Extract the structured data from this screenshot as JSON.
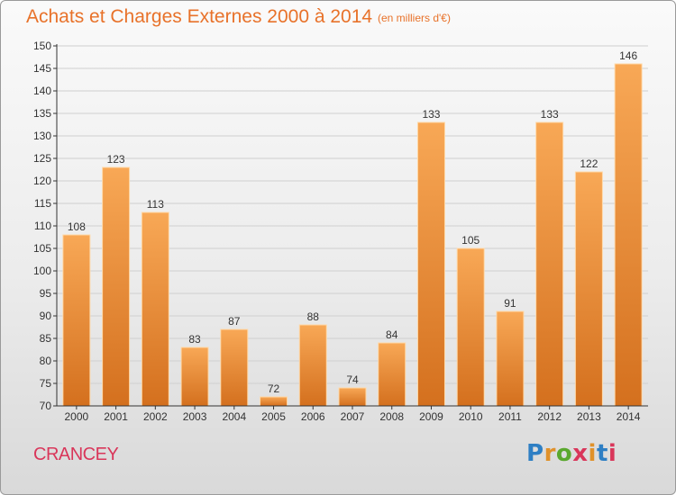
{
  "title": "Achats et Charges Externes 2000 à 2014",
  "subtitle": "(en milliers d'€)",
  "commune": "CRANCEY",
  "logo": {
    "text": "Proxiti",
    "letters": [
      "P",
      "r",
      "o",
      "x",
      "i",
      "t",
      "i"
    ],
    "letter_colors": [
      "#2e7fc4",
      "#e0912a",
      "#5aa82e",
      "#d9365a",
      "#e0912a",
      "#2e7fc4",
      "#d9365a"
    ]
  },
  "colors": {
    "bar_top": "#f8a856",
    "bar_bottom": "#d4701e",
    "bar_edge": "#ffd9a8",
    "grid": "#cfcfcf",
    "axis": "#333333",
    "text": "#333333",
    "title": "#e8722a",
    "commune": "#d9365a"
  },
  "chart_data": {
    "type": "bar",
    "title": "Achats et Charges Externes 2000 à 2014",
    "subtitle": "(en milliers d'€)",
    "categories": [
      "2000",
      "2001",
      "2002",
      "2003",
      "2004",
      "2005",
      "2006",
      "2007",
      "2008",
      "2009",
      "2010",
      "2011",
      "2012",
      "2013",
      "2014"
    ],
    "values": [
      108,
      123,
      113,
      83,
      87,
      72,
      88,
      74,
      84,
      133,
      105,
      91,
      133,
      122,
      146
    ],
    "ylim": [
      70,
      150
    ],
    "yticks": [
      70,
      75,
      80,
      85,
      90,
      95,
      100,
      105,
      110,
      115,
      120,
      125,
      130,
      135,
      140,
      145,
      150
    ],
    "grid": true,
    "legend": "none",
    "xlabel": "",
    "ylabel": ""
  }
}
